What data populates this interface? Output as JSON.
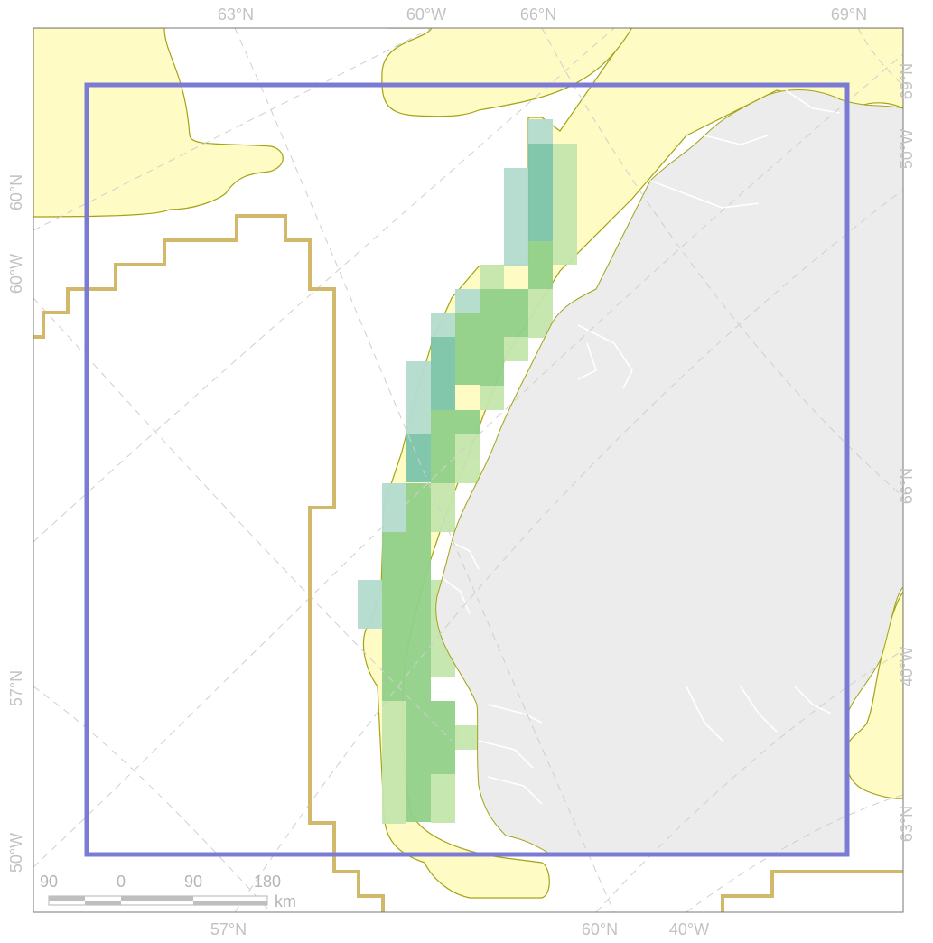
{
  "graticule_labels": {
    "top": [
      "63°N",
      "60°W",
      "66°N",
      "69°N"
    ],
    "bottom": [
      "57°N",
      "60°N",
      "40°W"
    ],
    "left": [
      "60°N",
      "60°W",
      "57°N",
      "50°W"
    ],
    "right": [
      "69°N",
      "50°W",
      "66°N",
      "40°W",
      "63°N"
    ]
  },
  "scale_bar": {
    "ticks": [
      "90",
      "0",
      "90",
      "180"
    ],
    "unit": "km"
  },
  "colors": {
    "land": "#ececec",
    "coast_zone": "#fffbc4",
    "coast_zone_outline": "#a3a313",
    "study_box": "#7b7bd4",
    "eez_boundary": "#d1b86a",
    "cell_light_green": "#c5e6ad",
    "cell_mid_green": "#92d08a",
    "cell_teal_light": "#b4dccf",
    "cell_teal": "#7cc5aa",
    "graticule": "#cfcfcf"
  }
}
